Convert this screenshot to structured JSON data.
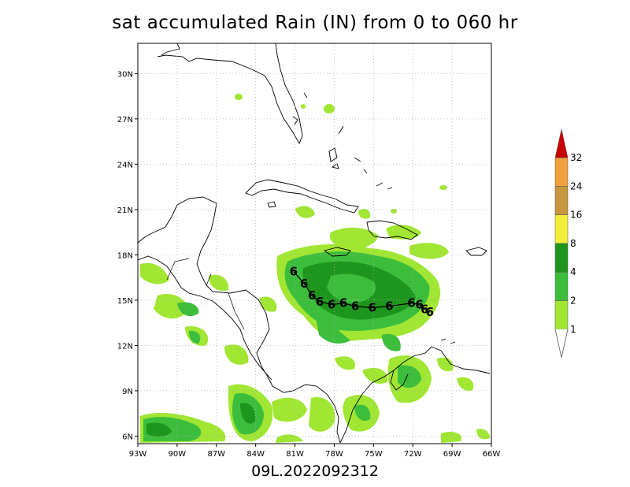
{
  "title": "sat accumulated Rain (IN) from 0 to 060 hr",
  "footer": "09L.2022092312",
  "map": {
    "lon_range": [
      -93,
      -66
    ],
    "lat_range": [
      5.5,
      32
    ],
    "lon_ticks": [
      "93W",
      "90W",
      "87W",
      "84W",
      "81W",
      "78W",
      "75W",
      "72W",
      "69W",
      "66W"
    ],
    "lat_ticks": [
      "6N",
      "9N",
      "12N",
      "15N",
      "18N",
      "21N",
      "24N",
      "27N",
      "30N"
    ],
    "gridlines": true
  },
  "colorbar": {
    "labels": [
      "1",
      "2",
      "4",
      "8",
      "16",
      "24",
      "32"
    ],
    "colors": [
      "#a0e632",
      "#3cbe3c",
      "#1e961e",
      "#f0f03c",
      "#c8963c",
      "#f0a03c",
      "#c80000"
    ],
    "bottom_color": "#ffffff"
  },
  "storm_track": {
    "symbol": "6",
    "points": [
      [
        -70.7,
        14.2
      ],
      [
        -71.1,
        14.4
      ],
      [
        -71.5,
        14.7
      ],
      [
        -72.1,
        14.8
      ],
      [
        -73.8,
        14.6
      ],
      [
        -75.1,
        14.5
      ],
      [
        -76.4,
        14.6
      ],
      [
        -77.3,
        14.8
      ],
      [
        -78.2,
        14.7
      ],
      [
        -79.1,
        14.9
      ],
      [
        -79.7,
        15.3
      ],
      [
        -80.3,
        16.1
      ],
      [
        -81.1,
        16.9
      ]
    ]
  }
}
